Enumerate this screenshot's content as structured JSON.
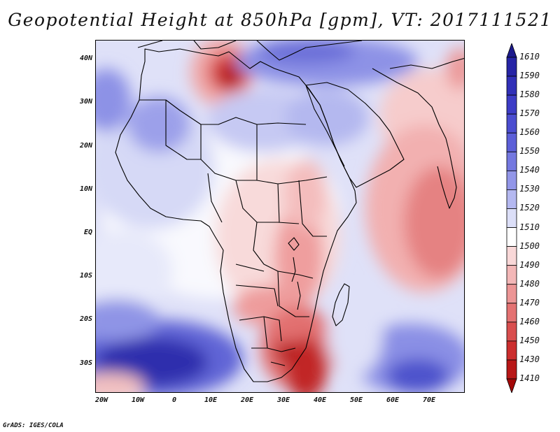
{
  "title": "Geopotential Height at 850hPa [gpm], VT: 2017111521",
  "credit": "GrADS: IGES/COLA",
  "map": {
    "region": "Africa and Arabian Peninsula",
    "lat_labels": [
      "40N",
      "30N",
      "20N",
      "10N",
      "EQ",
      "10S",
      "20S",
      "30S"
    ],
    "lon_labels": [
      "20W",
      "10W",
      "0",
      "10E",
      "20E",
      "30E",
      "40E",
      "50E",
      "60E",
      "70E"
    ],
    "lat_range": [
      -37,
      44
    ],
    "lon_range": [
      -22,
      80
    ]
  },
  "colorbar": {
    "levels": [
      "1610",
      "1590",
      "1580",
      "1570",
      "1560",
      "1550",
      "1540",
      "1530",
      "1520",
      "1510",
      "1500",
      "1490",
      "1480",
      "1470",
      "1460",
      "1450",
      "1430",
      "1410"
    ],
    "colors": [
      "#1c1a8c",
      "#2624a6",
      "#3130b8",
      "#3d3cc6",
      "#4b4dd0",
      "#5c5fd8",
      "#7478e0",
      "#9296e8",
      "#b4b8f0",
      "#dcdff8",
      "#ffffff",
      "#f9d8d8",
      "#f3b7b7",
      "#ec9595",
      "#e47272",
      "#d94e4e",
      "#cc2e2e",
      "#b81717",
      "#a30808"
    ],
    "min_arrow_color": "#a30808",
    "max_arrow_color": "#1c1a8c"
  }
}
